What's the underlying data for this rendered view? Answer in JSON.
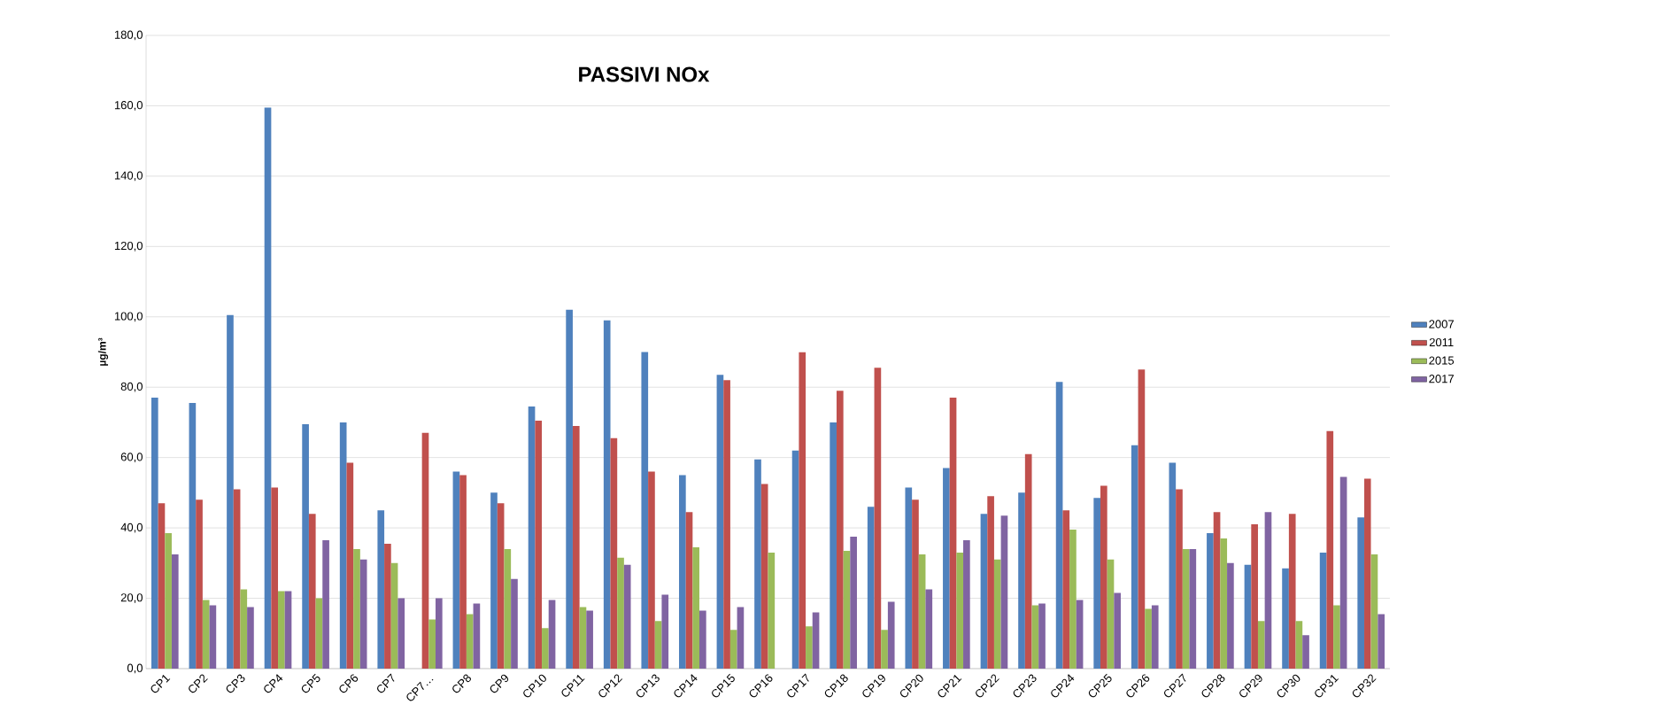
{
  "chart_data": {
    "type": "bar",
    "title": "PASSIVI NOx",
    "ylabel": "µg/m³",
    "categories": [
      "CP1",
      "CP2",
      "CP3",
      "CP4",
      "CP5",
      "CP6",
      "CP7",
      "CP7…",
      "CP8",
      "CP9",
      "CP10",
      "CP11",
      "CP12",
      "CP13",
      "CP14",
      "CP15",
      "CP16",
      "CP17",
      "CP18",
      "CP19",
      "CP20",
      "CP21",
      "CP22",
      "CP23",
      "CP24",
      "CP25",
      "CP26",
      "CP27",
      "CP28",
      "CP29",
      "CP30",
      "CP31",
      "CP32"
    ],
    "series": [
      {
        "name": "2007",
        "color": "#4f81bd",
        "values": [
          77,
          75.5,
          100.5,
          159.5,
          69.5,
          70,
          45,
          null,
          56,
          50,
          74.5,
          102,
          99,
          90,
          55,
          83.5,
          59.5,
          62,
          70,
          46,
          51.5,
          57,
          44,
          50,
          81.5,
          48.5,
          63.5,
          58.5,
          38.5,
          29.5,
          28.5,
          33,
          43
        ]
      },
      {
        "name": "2011",
        "color": "#c0504d",
        "values": [
          47,
          48,
          51,
          51.5,
          44,
          58.5,
          35.5,
          67,
          55,
          47,
          70.5,
          69,
          65.5,
          56,
          44.5,
          82,
          52.5,
          90,
          79,
          85.5,
          48,
          77,
          49,
          61,
          45,
          52,
          85,
          51,
          44.5,
          41,
          44,
          67.5,
          54
        ]
      },
      {
        "name": "2015",
        "color": "#9bbb59",
        "values": [
          38.5,
          19.5,
          22.5,
          22,
          20,
          34,
          30,
          14,
          15.5,
          34,
          11.5,
          17.5,
          31.5,
          13.5,
          34.5,
          11,
          33,
          12,
          33.5,
          11,
          32.5,
          33,
          31,
          18,
          39.5,
          31,
          17,
          34,
          37,
          13.5,
          13.5,
          18,
          32.5
        ]
      },
      {
        "name": "2017",
        "color": "#8064a2",
        "values": [
          32.5,
          18,
          17.5,
          22,
          36.5,
          31,
          20,
          20,
          18.5,
          25.5,
          19.5,
          16.5,
          29.5,
          21,
          16.5,
          17.5,
          null,
          16,
          37.5,
          19,
          22.5,
          36.5,
          43.5,
          18.5,
          19.5,
          21.5,
          18,
          34,
          30,
          44.5,
          9.5,
          54.5,
          15.5
        ]
      }
    ],
    "ylim": [
      0,
      180
    ],
    "yticks": [
      {
        "value": 0,
        "label": "0,0"
      },
      {
        "value": 20,
        "label": "20,0"
      },
      {
        "value": 40,
        "label": "40,0"
      },
      {
        "value": 60,
        "label": "60,0"
      },
      {
        "value": 80,
        "label": "80,0"
      },
      {
        "value": 100,
        "label": "100,0"
      },
      {
        "value": 120,
        "label": "120,0"
      },
      {
        "value": 140,
        "label": "140,0"
      },
      {
        "value": 160,
        "label": "160,0"
      },
      {
        "value": 180,
        "label": "180,0"
      }
    ],
    "grid": "y",
    "legend": "right"
  }
}
